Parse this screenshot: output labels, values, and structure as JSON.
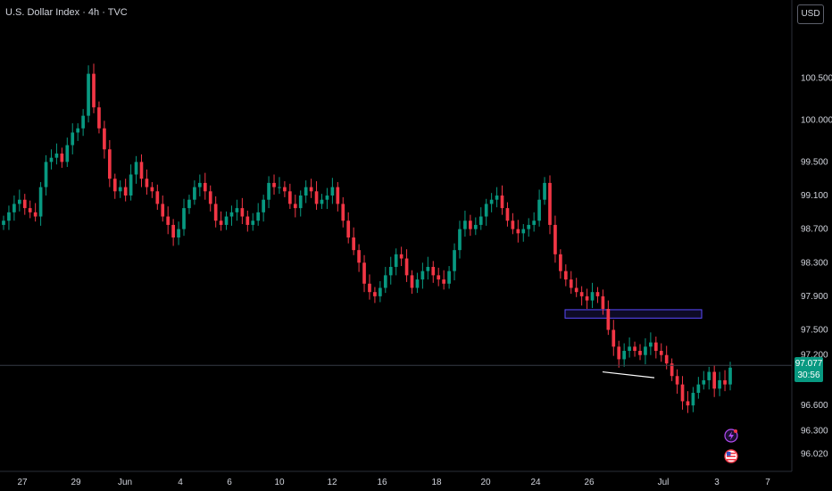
{
  "header": {
    "title": "U.S. Dollar Index · 4h · TVC"
  },
  "currency": "USD",
  "last_price": {
    "value": "97.077",
    "countdown": "30:56"
  },
  "colors": {
    "up": "#089981",
    "down": "#f23645",
    "zone": "#5b4bff",
    "grid": "#2a2e39"
  },
  "icons": [
    "lightning-event-icon",
    "us-flag-icon"
  ],
  "chart_data": {
    "type": "candlestick",
    "title": "U.S. Dollar Index · 4h · TVC",
    "y_ticks": [
      100.5,
      100.0,
      99.5,
      99.1,
      98.7,
      98.3,
      97.9,
      97.5,
      97.2,
      96.6,
      96.3,
      96.02
    ],
    "y_tick_labels": [
      "100.500",
      "100.000",
      "99.500",
      "99.100",
      "98.700",
      "98.300",
      "97.900",
      "97.500",
      "97.200",
      "96.600",
      "96.300",
      "96.020"
    ],
    "x_tick_labels": [
      "27",
      "29",
      "Jun",
      "4",
      "6",
      "10",
      "12",
      "16",
      "18",
      "20",
      "24",
      "26",
      "Jul",
      "3",
      "7"
    ],
    "ylim": [
      95.9,
      100.95
    ],
    "last_price": 97.077,
    "zone": {
      "low": 97.64,
      "high": 97.74
    },
    "trendline": [
      [
        97.0,
        96.93
      ]
    ],
    "closes": [
      98.8,
      98.9,
      99.0,
      99.05,
      98.95,
      98.9,
      98.85,
      99.2,
      99.5,
      99.55,
      99.6,
      99.5,
      99.7,
      99.85,
      99.9,
      100.05,
      100.55,
      100.15,
      99.9,
      99.65,
      99.3,
      99.15,
      99.2,
      99.1,
      99.35,
      99.5,
      99.3,
      99.2,
      99.15,
      99.0,
      98.85,
      98.75,
      98.6,
      98.7,
      98.95,
      99.05,
      99.2,
      99.25,
      99.15,
      99.0,
      98.8,
      98.75,
      98.85,
      98.9,
      98.95,
      98.85,
      98.75,
      98.8,
      98.9,
      99.05,
      99.25,
      99.2,
      99.2,
      99.15,
      99.0,
      98.95,
      99.1,
      99.2,
      99.15,
      99.0,
      99.05,
      99.1,
      99.2,
      99.0,
      98.8,
      98.6,
      98.45,
      98.3,
      98.05,
      97.95,
      97.9,
      98.0,
      98.15,
      98.25,
      98.4,
      98.35,
      98.15,
      98.0,
      98.1,
      98.2,
      98.25,
      98.15,
      98.1,
      98.05,
      98.2,
      98.45,
      98.7,
      98.8,
      98.7,
      98.75,
      98.85,
      99.0,
      99.05,
      99.1,
      98.95,
      98.8,
      98.7,
      98.65,
      98.7,
      98.75,
      98.8,
      99.05,
      99.25,
      98.75,
      98.4,
      98.2,
      98.1,
      98.0,
      97.95,
      97.9,
      97.85,
      97.95,
      97.9,
      97.75,
      97.5,
      97.3,
      97.15,
      97.25,
      97.3,
      97.25,
      97.2,
      97.3,
      97.35,
      97.25,
      97.2,
      97.1,
      96.95,
      96.85,
      96.65,
      96.6,
      96.75,
      96.85,
      96.9,
      97.0,
      96.8,
      96.9,
      96.85,
      97.05
    ]
  }
}
